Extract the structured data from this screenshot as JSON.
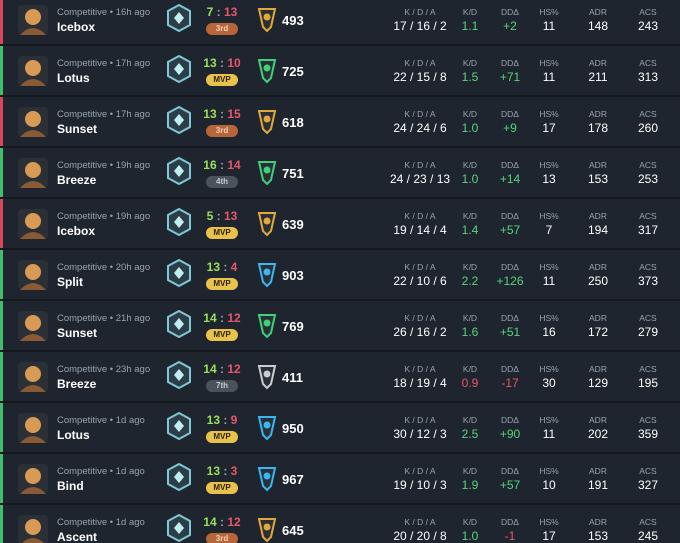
{
  "stat_labels": {
    "kda": "K / D / A",
    "kd": "K/D",
    "dd": "DDΔ",
    "hs": "HS%",
    "adr": "ADR",
    "acs": "ACS"
  },
  "matches": [
    {
      "mode": "Competitive • 16h ago",
      "map": "Icebox",
      "score": [
        7,
        13
      ],
      "placement": "3rd",
      "rating": "493",
      "tier_color": "#e0a93a",
      "kda": "17 / 16 / 2",
      "kd": "1.1",
      "dd": "+2",
      "hs": "11",
      "adr": "148",
      "acs": "243"
    },
    {
      "mode": "Competitive • 17h ago",
      "map": "Lotus",
      "score": [
        13,
        10
      ],
      "placement": "MVP",
      "rating": "725",
      "tier_color": "#3fd17a",
      "kda": "22 / 15 / 8",
      "kd": "1.5",
      "dd": "+71",
      "hs": "11",
      "adr": "211",
      "acs": "313"
    },
    {
      "mode": "Competitive • 17h ago",
      "map": "Sunset",
      "score": [
        13,
        15
      ],
      "placement": "3rd",
      "rating": "618",
      "tier_color": "#e0a93a",
      "kda": "24 / 24 / 6",
      "kd": "1.0",
      "dd": "+9",
      "hs": "17",
      "adr": "178",
      "acs": "260"
    },
    {
      "mode": "Competitive • 19h ago",
      "map": "Breeze",
      "score": [
        16,
        14
      ],
      "placement": "4th",
      "rating": "751",
      "tier_color": "#3fd17a",
      "kda": "24 / 23 / 13",
      "kd": "1.0",
      "dd": "+14",
      "hs": "13",
      "adr": "153",
      "acs": "253"
    },
    {
      "mode": "Competitive • 19h ago",
      "map": "Icebox",
      "score": [
        5,
        13
      ],
      "placement": "MVP",
      "rating": "639",
      "tier_color": "#e0a93a",
      "kda": "19 / 14 / 4",
      "kd": "1.4",
      "dd": "+57",
      "hs": "7",
      "adr": "194",
      "acs": "317"
    },
    {
      "mode": "Competitive • 20h ago",
      "map": "Split",
      "score": [
        13,
        4
      ],
      "placement": "MVP",
      "rating": "903",
      "tier_color": "#3bb6f0",
      "kda": "22 / 10 / 6",
      "kd": "2.2",
      "dd": "+126",
      "hs": "11",
      "adr": "250",
      "acs": "373"
    },
    {
      "mode": "Competitive • 21h ago",
      "map": "Sunset",
      "score": [
        14,
        12
      ],
      "placement": "MVP",
      "rating": "769",
      "tier_color": "#3fd17a",
      "kda": "26 / 16 / 2",
      "kd": "1.6",
      "dd": "+51",
      "hs": "16",
      "adr": "172",
      "acs": "279"
    },
    {
      "mode": "Competitive • 23h ago",
      "map": "Breeze",
      "score": [
        14,
        12
      ],
      "placement": "7th",
      "rating": "411",
      "tier_color": "#c9ccd1",
      "kda": "18 / 19 / 4",
      "kd": "0.9",
      "dd": "-17",
      "hs": "30",
      "adr": "129",
      "acs": "195"
    },
    {
      "mode": "Competitive • 1d ago",
      "map": "Lotus",
      "score": [
        13,
        9
      ],
      "placement": "MVP",
      "rating": "950",
      "tier_color": "#3bb6f0",
      "kda": "30 / 12 / 3",
      "kd": "2.5",
      "dd": "+90",
      "hs": "11",
      "adr": "202",
      "acs": "359"
    },
    {
      "mode": "Competitive • 1d ago",
      "map": "Bind",
      "score": [
        13,
        3
      ],
      "placement": "MVP",
      "rating": "967",
      "tier_color": "#3bb6f0",
      "kda": "19 / 10 / 3",
      "kd": "1.9",
      "dd": "+57",
      "hs": "10",
      "adr": "191",
      "acs": "327"
    },
    {
      "mode": "Competitive • 1d ago",
      "map": "Ascent",
      "score": [
        14,
        12
      ],
      "placement": "3rd",
      "rating": "645",
      "tier_color": "#e0a93a",
      "kda": "20 / 20 / 8",
      "kd": "1.0",
      "dd": "-1",
      "hs": "17",
      "adr": "153",
      "acs": "245"
    }
  ]
}
